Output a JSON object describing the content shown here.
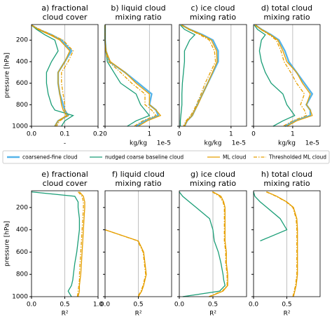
{
  "chart_data": [
    {
      "type": "line",
      "title": [
        "a) fractional",
        "cloud cover"
      ],
      "xlabel": "-",
      "ylabel": "pressure [hPa]",
      "y": [
        60,
        100,
        150,
        200,
        300,
        400,
        500,
        600,
        700,
        800,
        850,
        900,
        950,
        1000
      ],
      "xlim": [
        0,
        0.2
      ],
      "xticks": [
        {
          "value": 0,
          "label": "0.0"
        },
        0.1,
        0.2
      ],
      "ylim": [
        1000,
        55
      ],
      "yticks": [
        200,
        400,
        600,
        800,
        1000
      ],
      "grid": true,
      "series": [
        {
          "name": "coarsened-fine cloud",
          "color": "#56b4e9",
          "values": [
            0.0,
            0.02,
            0.06,
            0.09,
            0.12,
            0.1,
            0.08,
            0.08,
            0.085,
            0.095,
            0.1,
            0.11,
            0.08,
            0.07
          ]
        },
        {
          "name": "nudged coarse baseline cloud",
          "color": "#1b9e77",
          "values": [
            0.0,
            0.015,
            0.04,
            0.07,
            0.08,
            0.06,
            0.045,
            0.045,
            0.05,
            0.06,
            0.07,
            0.125,
            0.1,
            0.09
          ]
        },
        {
          "name": "ML cloud",
          "color": "#e69f00",
          "values": [
            0.0,
            0.02,
            0.055,
            0.085,
            0.115,
            0.1,
            0.08,
            0.08,
            0.085,
            0.09,
            0.095,
            0.105,
            0.08,
            0.07
          ]
        },
        {
          "name": "Thresholded ML cloud",
          "color": "#e69f00",
          "linestyle": "dashdot",
          "values": [
            0.0,
            0.025,
            0.06,
            0.095,
            0.125,
            0.11,
            0.09,
            0.09,
            0.095,
            0.1,
            0.1,
            0.11,
            0.085,
            0.075
          ]
        }
      ]
    },
    {
      "type": "line",
      "title": [
        "b) liquid cloud",
        "mixing ratio"
      ],
      "xlabel": "kg/kg",
      "offset": "1e-5",
      "y": [
        60,
        100,
        150,
        200,
        300,
        400,
        500,
        600,
        700,
        800,
        850,
        900,
        950,
        1000
      ],
      "xlim": [
        0,
        1.5
      ],
      "xticks": [
        0,
        1
      ],
      "ylim": [
        1000,
        55
      ],
      "yticks": [
        200,
        400,
        600,
        800,
        1000
      ],
      "grid": true,
      "series": [
        {
          "color": "#56b4e9",
          "values": [
            0,
            0,
            0,
            0,
            0.02,
            0.1,
            0.45,
            0.75,
            1.05,
            1.0,
            1.15,
            1.2,
            0.9,
            0.7
          ]
        },
        {
          "color": "#1b9e77",
          "values": [
            0,
            0,
            0,
            0,
            0.02,
            0.05,
            0.2,
            0.35,
            0.7,
            0.8,
            0.9,
            1.0,
            0.7,
            0.5
          ]
        },
        {
          "color": "#e69f00",
          "values": [
            0,
            0,
            0,
            0,
            0.02,
            0.12,
            0.45,
            0.7,
            1.0,
            1.0,
            1.15,
            1.25,
            0.95,
            0.75
          ]
        },
        {
          "color": "#e69f00",
          "linestyle": "dashdot",
          "values": [
            0,
            0,
            0,
            0,
            0.01,
            0.08,
            0.35,
            0.6,
            0.9,
            0.9,
            1.05,
            1.15,
            0.85,
            0.65
          ]
        }
      ]
    },
    {
      "type": "line",
      "title": [
        "c) ice cloud",
        "mixing ratio"
      ],
      "xlabel": "kg/kg",
      "offset": "1e-5",
      "y": [
        60,
        100,
        150,
        200,
        300,
        400,
        500,
        600,
        700,
        800,
        850,
        900,
        950,
        1000
      ],
      "xlim": [
        0,
        1.3
      ],
      "xticks": [
        0,
        1
      ],
      "ylim": [
        1000,
        55
      ],
      "yticks": [
        200,
        400,
        600,
        800,
        1000
      ],
      "grid": true,
      "series": [
        {
          "color": "#56b4e9",
          "values": [
            0.05,
            0.2,
            0.45,
            0.65,
            0.75,
            0.75,
            0.65,
            0.55,
            0.45,
            0.35,
            0.3,
            0.25,
            0.15,
            0.1
          ]
        },
        {
          "color": "#1b9e77",
          "values": [
            0.02,
            0.1,
            0.3,
            0.2,
            0.1,
            0.1,
            0.08,
            0.06,
            0.05,
            0.05,
            0.04,
            0.03,
            0.02,
            0.02
          ]
        },
        {
          "color": "#e69f00",
          "values": [
            0.05,
            0.2,
            0.43,
            0.62,
            0.72,
            0.73,
            0.64,
            0.55,
            0.45,
            0.36,
            0.3,
            0.25,
            0.15,
            0.1
          ]
        },
        {
          "color": "#e69f00",
          "linestyle": "dashdot",
          "values": [
            0.04,
            0.18,
            0.4,
            0.58,
            0.68,
            0.7,
            0.6,
            0.5,
            0.42,
            0.33,
            0.28,
            0.22,
            0.13,
            0.08
          ]
        }
      ]
    },
    {
      "type": "line",
      "title": [
        "d) total cloud",
        "mixing ratio"
      ],
      "xlabel": "kg/kg",
      "offset": "1e-5",
      "y": [
        60,
        100,
        150,
        200,
        300,
        400,
        500,
        600,
        700,
        800,
        850,
        900,
        950,
        1000
      ],
      "xlim": [
        0,
        1.7
      ],
      "xticks": [
        0,
        1
      ],
      "ylim": [
        1000,
        55
      ],
      "yticks": [
        200,
        400,
        600,
        800,
        1000
      ],
      "grid": true,
      "series": [
        {
          "color": "#56b4e9",
          "values": [
            0.05,
            0.2,
            0.45,
            0.65,
            0.8,
            0.9,
            1.1,
            1.3,
            1.5,
            1.35,
            1.45,
            1.45,
            1.05,
            0.8
          ]
        },
        {
          "color": "#1b9e77",
          "values": [
            0.02,
            0.1,
            0.3,
            0.2,
            0.15,
            0.2,
            0.3,
            0.45,
            0.75,
            0.85,
            0.95,
            1.05,
            0.75,
            0.5
          ]
        },
        {
          "color": "#e69f00",
          "values": [
            0.05,
            0.2,
            0.43,
            0.62,
            0.75,
            0.85,
            1.1,
            1.25,
            1.45,
            1.35,
            1.45,
            1.5,
            1.1,
            0.85
          ]
        },
        {
          "color": "#e69f00",
          "linestyle": "dashdot",
          "values": [
            0.04,
            0.18,
            0.4,
            0.58,
            0.7,
            0.78,
            0.95,
            1.1,
            1.3,
            1.2,
            1.3,
            1.35,
            1.0,
            0.75
          ]
        }
      ]
    },
    {
      "type": "line",
      "title": [
        "e) fractional",
        "cloud cover"
      ],
      "xlabel": "R²",
      "ylabel": "pressure [hPa]",
      "y": [
        60,
        100,
        150,
        200,
        300,
        400,
        500,
        600,
        700,
        800,
        850,
        900,
        950,
        1000
      ],
      "xlim": [
        0,
        1
      ],
      "xticks": [
        {
          "value": 0,
          "label": "0.0"
        },
        0.5,
        {
          "value": 1,
          "label": "1.0"
        }
      ],
      "ylim": [
        1000,
        50
      ],
      "yticks": [
        200,
        400,
        600,
        800,
        1000
      ],
      "grid": true,
      "series": [
        {
          "color": "#1b9e77",
          "values": [
            0.0,
            0.65,
            0.7,
            0.7,
            0.72,
            0.72,
            0.7,
            0.68,
            0.65,
            0.63,
            0.62,
            0.6,
            0.55,
            0.6
          ]
        },
        {
          "color": "#e69f00",
          "values": [
            0.72,
            0.78,
            0.8,
            0.8,
            0.79,
            0.78,
            0.77,
            0.76,
            0.75,
            0.74,
            0.73,
            0.72,
            0.72,
            0.7
          ]
        },
        {
          "color": "#e69f00",
          "linestyle": "dashdot",
          "values": [
            0.7,
            0.76,
            0.78,
            0.78,
            0.77,
            0.76,
            0.75,
            0.74,
            0.73,
            0.72,
            0.72,
            0.71,
            0.7,
            0.69
          ]
        }
      ]
    },
    {
      "type": "line",
      "title": [
        "f) liquid cloud",
        "mixing ratio"
      ],
      "xlabel": "R²",
      "y": [
        60,
        100,
        150,
        200,
        300,
        400,
        500,
        600,
        700,
        800,
        850,
        900,
        950,
        1000
      ],
      "xlim": [
        0,
        1
      ],
      "xticks": [
        {
          "value": 0,
          "label": "0.0"
        },
        0.5
      ],
      "ylim": [
        1000,
        50
      ],
      "yticks": [
        200,
        400,
        600,
        800,
        1000
      ],
      "grid": true,
      "series": [
        {
          "color": "#e69f00",
          "values": [
            null,
            null,
            null,
            null,
            null,
            0.0,
            0.5,
            0.58,
            0.6,
            0.62,
            0.6,
            0.58,
            0.55,
            0.5
          ]
        },
        {
          "color": "#e69f00",
          "linestyle": "dashdot",
          "values": [
            null,
            null,
            null,
            null,
            null,
            0.0,
            0.49,
            0.57,
            0.59,
            0.61,
            0.59,
            0.57,
            0.54,
            0.49
          ]
        }
      ]
    },
    {
      "type": "line",
      "title": [
        "g) ice cloud",
        "mixing ratio"
      ],
      "xlabel": "R²",
      "y": [
        60,
        100,
        150,
        200,
        300,
        400,
        500,
        600,
        700,
        800,
        850,
        900,
        950,
        1000
      ],
      "xlim": [
        0,
        1
      ],
      "xticks": [
        {
          "value": 0,
          "label": "0.0"
        },
        0.5
      ],
      "ylim": [
        1000,
        50
      ],
      "yticks": [
        200,
        400,
        600,
        800,
        1000
      ],
      "grid": true,
      "series": [
        {
          "color": "#1b9e77",
          "values": [
            0.0,
            0.05,
            0.15,
            0.25,
            0.45,
            0.5,
            0.52,
            0.58,
            0.62,
            0.65,
            0.66,
            0.68,
            0.6,
            0.05
          ]
        },
        {
          "color": "#e69f00",
          "values": [
            0.5,
            0.62,
            0.66,
            0.68,
            0.68,
            0.68,
            0.68,
            0.7,
            0.7,
            0.72,
            0.72,
            0.72,
            0.65,
            0.45
          ]
        },
        {
          "color": "#e69f00",
          "linestyle": "dashdot",
          "values": [
            0.49,
            0.6,
            0.65,
            0.67,
            0.67,
            0.67,
            0.67,
            0.69,
            0.69,
            0.71,
            0.71,
            0.71,
            0.64,
            0.44
          ]
        }
      ]
    },
    {
      "type": "line",
      "title": [
        "h) total cloud",
        "mixing ratio"
      ],
      "xlabel": "R²",
      "y": [
        60,
        100,
        150,
        200,
        300,
        400,
        500,
        600,
        700,
        800,
        850,
        900,
        950,
        1000
      ],
      "xlim": [
        0,
        1
      ],
      "xticks": [
        {
          "value": 0,
          "label": "0.0"
        },
        0.5
      ],
      "ylim": [
        1000,
        50
      ],
      "yticks": [
        200,
        400,
        600,
        800,
        1000
      ],
      "grid": true,
      "series": [
        {
          "color": "#1b9e77",
          "values": [
            0.0,
            0.02,
            0.1,
            0.2,
            0.4,
            0.5,
            0.1,
            null,
            null,
            null,
            null,
            null,
            null,
            null
          ]
        },
        {
          "color": "#e69f00",
          "values": [
            0.2,
            0.35,
            0.5,
            0.6,
            0.65,
            0.66,
            0.66,
            0.66,
            0.66,
            0.66,
            0.65,
            0.64,
            0.62,
            0.6
          ]
        },
        {
          "color": "#e69f00",
          "linestyle": "dashdot",
          "values": [
            0.19,
            0.34,
            0.49,
            0.59,
            0.64,
            0.65,
            0.65,
            0.65,
            0.65,
            0.65,
            0.64,
            0.63,
            0.61,
            0.59
          ]
        }
      ]
    }
  ]
}
